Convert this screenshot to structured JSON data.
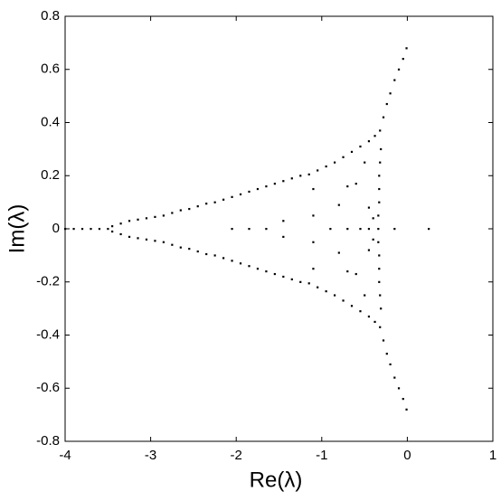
{
  "chart_data": {
    "type": "scatter",
    "color": "#000000",
    "x_label": "Re(λ)",
    "y_label": "Im(λ)",
    "xlim": [
      -4,
      1
    ],
    "xticks": [
      -4,
      -3,
      -2,
      -1,
      0,
      1
    ],
    "ylim": [
      -0.8,
      0.8
    ],
    "yticks": [
      -0.8,
      -0.6,
      -0.4,
      -0.2,
      0,
      0.2,
      0.4,
      0.6,
      0.8
    ],
    "x": [
      -3.45,
      -3.35,
      -3.25,
      -3.15,
      -3.05,
      -2.95,
      -2.85,
      -2.75,
      -2.65,
      -2.55,
      -2.45,
      -2.35,
      -2.25,
      -2.15,
      -2.05,
      -1.95,
      -1.85,
      -1.75,
      -1.65,
      -1.55,
      -1.45,
      -1.35,
      -1.25,
      -1.15,
      -1.05,
      -0.95,
      -0.85,
      -0.75,
      -0.65,
      -0.55,
      -0.45,
      -0.38,
      -0.32,
      -0.28,
      -0.24,
      -0.2,
      -0.15,
      -0.1,
      -0.05,
      -0.01,
      -0.31,
      -0.32,
      -0.33,
      -0.33,
      -0.33,
      -0.34,
      -1.45,
      -1.1,
      -1.1,
      -0.8,
      -0.7,
      -0.6,
      -0.5,
      -0.45,
      -0.4,
      -3.45,
      -3.35,
      -3.25,
      -3.15,
      -3.05,
      -2.95,
      -2.85,
      -2.75,
      -2.65,
      -2.55,
      -2.45,
      -2.35,
      -2.25,
      -2.15,
      -2.05,
      -1.95,
      -1.85,
      -1.75,
      -1.65,
      -1.55,
      -1.45,
      -1.35,
      -1.25,
      -1.15,
      -1.05,
      -0.95,
      -0.85,
      -0.75,
      -0.65,
      -0.55,
      -0.45,
      -0.38,
      -0.32,
      -0.28,
      -0.24,
      -0.2,
      -0.15,
      -0.1,
      -0.05,
      -0.01,
      -0.31,
      -0.32,
      -0.33,
      -0.33,
      -0.33,
      -0.34,
      -1.45,
      -1.1,
      -1.1,
      -0.8,
      -0.7,
      -0.6,
      -0.5,
      -0.45,
      -0.4,
      -4,
      -3.9,
      -3.8,
      -3.7,
      -3.6,
      -3.5,
      -2.05,
      -1.85,
      -1.65,
      -0.9,
      -0.7,
      -0.55,
      -0.45,
      -0.34,
      -0.15,
      0.25
    ],
    "values": [
      0.01,
      0.02,
      0.03,
      0.035,
      0.04,
      0.045,
      0.05,
      0.06,
      0.07,
      0.075,
      0.085,
      0.095,
      0.1,
      0.11,
      0.12,
      0.13,
      0.14,
      0.15,
      0.16,
      0.17,
      0.18,
      0.19,
      0.2,
      0.205,
      0.22,
      0.235,
      0.25,
      0.27,
      0.29,
      0.31,
      0.33,
      0.35,
      0.37,
      0.42,
      0.47,
      0.51,
      0.56,
      0.6,
      0.64,
      0.68,
      0.3,
      0.25,
      0.2,
      0.15,
      0.1,
      0.05,
      0.03,
      0.15,
      0.05,
      0.09,
      0.16,
      0.17,
      0.25,
      0.08,
      0.04,
      -0.01,
      -0.02,
      -0.03,
      -0.035,
      -0.04,
      -0.045,
      -0.05,
      -0.06,
      -0.07,
      -0.075,
      -0.085,
      -0.095,
      -0.1,
      -0.11,
      -0.12,
      -0.13,
      -0.14,
      -0.15,
      -0.16,
      -0.17,
      -0.18,
      -0.19,
      -0.2,
      -0.205,
      -0.22,
      -0.235,
      -0.25,
      -0.27,
      -0.29,
      -0.31,
      -0.33,
      -0.35,
      -0.37,
      -0.42,
      -0.47,
      -0.51,
      -0.56,
      -0.6,
      -0.64,
      -0.68,
      -0.3,
      -0.25,
      -0.2,
      -0.15,
      -0.1,
      -0.05,
      -0.03,
      -0.15,
      -0.05,
      -0.09,
      -0.16,
      -0.17,
      -0.25,
      -0.08,
      -0.04,
      0,
      0,
      0,
      0,
      0,
      0,
      0,
      0,
      0,
      0,
      0,
      0,
      0,
      0,
      0,
      0
    ]
  }
}
